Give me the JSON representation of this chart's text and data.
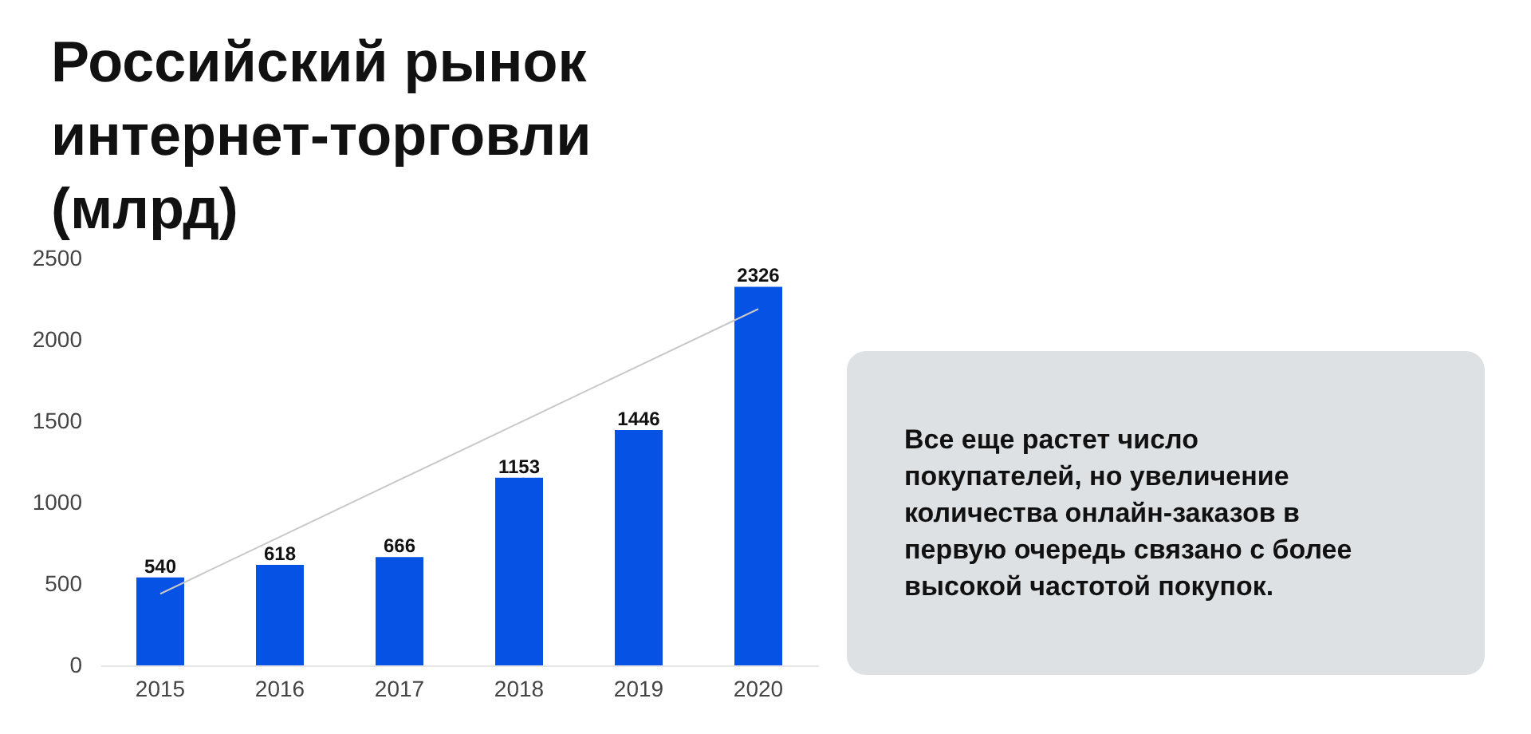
{
  "chart_data": {
    "type": "bar",
    "title": "Российский рынок интернет-торговли (млрд)",
    "categories": [
      "2015",
      "2016",
      "2017",
      "2018",
      "2019",
      "2020"
    ],
    "series": [
      {
        "color": "#0652e4",
        "values": [
          540,
          618,
          666,
          1153,
          1446,
          2326
        ],
        "value_labels": [
          "540",
          "618",
          "666",
          "1153",
          "1446",
          "2326"
        ]
      },
      {
        "type": "line",
        "color": "#c8c8c8",
        "values": [
          440,
          790,
          1140,
          1490,
          1840,
          2190
        ]
      }
    ],
    "ylim": [
      0,
      2500
    ],
    "yticks": [
      0,
      500,
      1000,
      1500,
      2000,
      2500
    ],
    "grid": false,
    "legend": false,
    "annotations": [
      "Все еще растет число покупателей, но увеличение количества онлайн-заказов в первую очередь связано с более высокой частотой покупок."
    ]
  }
}
